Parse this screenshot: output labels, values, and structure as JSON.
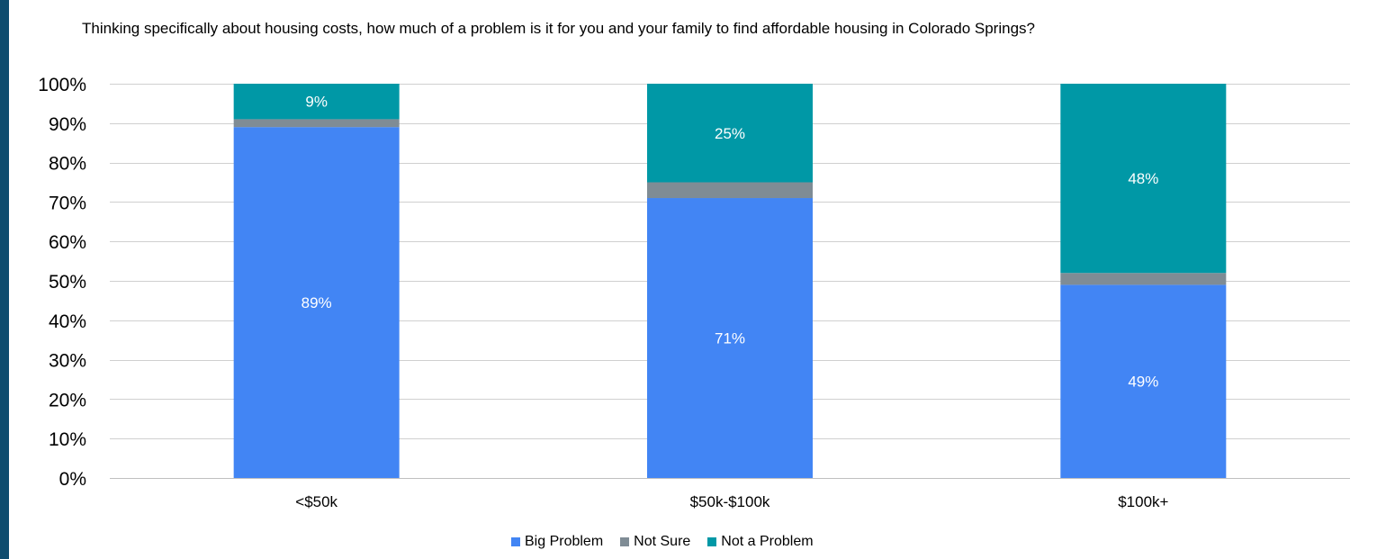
{
  "chart_data": {
    "type": "bar",
    "stacked": true,
    "title": "Thinking specifically about housing costs, how much of a problem is it for you and your family to find affordable housing in Colorado Springs?",
    "categories": [
      "<$50k",
      "$50k-$100k",
      "$100k+"
    ],
    "series": [
      {
        "name": "Big Problem",
        "color": "#4285f4",
        "values": [
          89,
          71,
          49
        ],
        "labels": [
          "89%",
          "71%",
          "49%"
        ]
      },
      {
        "name": "Not Sure",
        "color": "#7f8c95",
        "values": [
          2,
          4,
          3
        ],
        "labels": [
          "",
          "",
          ""
        ]
      },
      {
        "name": "Not a Problem",
        "color": "#0098a6",
        "values": [
          9,
          25,
          48
        ],
        "labels": [
          "9%",
          "25%",
          "48%"
        ]
      }
    ],
    "ylim": [
      0,
      100
    ],
    "yticks": [
      0,
      10,
      20,
      30,
      40,
      50,
      60,
      70,
      80,
      90,
      100
    ],
    "ytick_labels": [
      "0%",
      "10%",
      "20%",
      "30%",
      "40%",
      "50%",
      "60%",
      "70%",
      "80%",
      "90%",
      "100%"
    ],
    "grid": true,
    "legend": "bottom"
  }
}
